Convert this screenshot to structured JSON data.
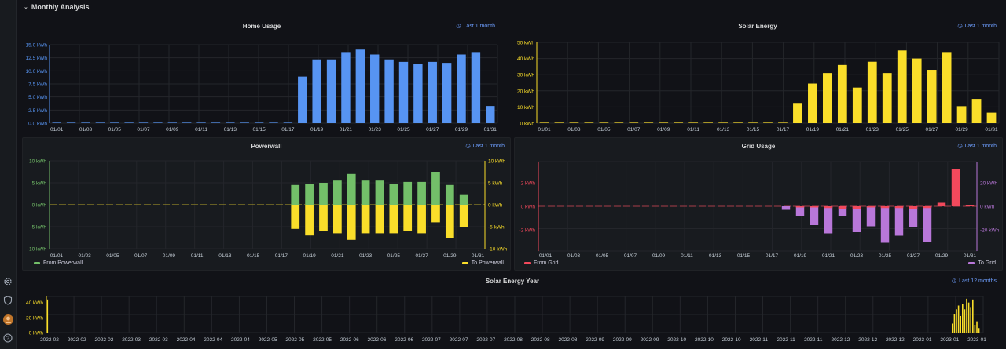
{
  "row_title": "Monthly Analysis",
  "sidebar_icons": [
    "gear-icon",
    "shield-icon",
    "user-avatar",
    "help-icon"
  ],
  "colors": {
    "blue": "#5794f2",
    "yellow": "#fade2a",
    "green": "#73bf69",
    "red": "#f2495c",
    "purple": "#b877d9",
    "axis_text": "#c7d0d9",
    "link": "#6e9fff"
  },
  "panels": {
    "home": {
      "title": "Home Usage",
      "time": "Last 1 month"
    },
    "solar": {
      "title": "Solar Energy",
      "time": "Last 1 month"
    },
    "powerwall": {
      "title": "Powerwall",
      "time": "Last 1 month",
      "legend_left": "From Powerwall",
      "legend_right": "To Powerwall"
    },
    "grid": {
      "title": "Grid Usage",
      "time": "Last 1 month",
      "legend_left": "From Grid",
      "legend_right": "To Grid"
    },
    "year": {
      "title": "Solar Energy Year",
      "time": "Last 12 months"
    }
  },
  "chart_data": [
    {
      "id": "home",
      "type": "bar",
      "title": "Home Usage",
      "days": 31,
      "x_ticks": [
        "01/01",
        "01/03",
        "01/05",
        "01/07",
        "01/09",
        "01/11",
        "01/13",
        "01/15",
        "01/17",
        "01/19",
        "01/21",
        "01/23",
        "01/25",
        "01/27",
        "01/29",
        "01/31"
      ],
      "y_ticks": [
        "15.0 kWh",
        "12.5 kWh",
        "10.0 kWh",
        "7.5 kWh",
        "5.0 kWh",
        "2.5 kWh",
        "0.0 kWh"
      ],
      "ylim": [
        0,
        16
      ],
      "values": [
        0,
        0,
        0,
        0,
        0,
        0,
        0,
        0,
        0,
        0,
        0,
        0,
        0,
        0,
        0,
        0,
        0,
        9.5,
        13,
        13,
        14.5,
        15,
        14,
        13,
        12.5,
        12,
        12.5,
        12.3,
        14,
        14.5,
        3.5
      ]
    },
    {
      "id": "solar",
      "type": "bar",
      "title": "Solar Energy",
      "days": 31,
      "x_ticks": [
        "01/01",
        "01/03",
        "01/05",
        "01/07",
        "01/09",
        "01/11",
        "01/13",
        "01/15",
        "01/17",
        "01/19",
        "01/21",
        "01/23",
        "01/25",
        "01/27",
        "01/29",
        "01/31"
      ],
      "y_ticks": [
        "50 kWh",
        "40 kWh",
        "30 kWh",
        "20 kWh",
        "10 kWh",
        "0 kWh"
      ],
      "ylim": [
        0,
        50
      ],
      "values": [
        0,
        0,
        0,
        0,
        0,
        0,
        0,
        0,
        0,
        0,
        0,
        0,
        0,
        0,
        0,
        0,
        0,
        12.5,
        24.5,
        31,
        36,
        22,
        38,
        31,
        45,
        40,
        33,
        44,
        10.5,
        15,
        6.5
      ]
    },
    {
      "id": "powerwall",
      "type": "bar",
      "title": "Powerwall",
      "days": 31,
      "x_ticks": [
        "01/01",
        "01/03",
        "01/05",
        "01/07",
        "01/09",
        "01/11",
        "01/13",
        "01/15",
        "01/17",
        "01/19",
        "01/21",
        "01/23",
        "01/25",
        "01/27",
        "01/29",
        "01/31"
      ],
      "y_ticks_left": [
        "10 kWh",
        "5 kWh",
        "0 kWh",
        "-5 kWh",
        "-10 kWh"
      ],
      "y_ticks_right": [
        "10 kWh",
        "5 kWh",
        "0 kWh",
        "-5 kWh",
        "-10 kWh"
      ],
      "ylim": [
        -10,
        10
      ],
      "series": [
        {
          "name": "From Powerwall",
          "values": [
            0,
            0,
            0,
            0,
            0,
            0,
            0,
            0,
            0,
            0,
            0,
            0,
            0,
            0,
            0,
            0,
            0,
            4.5,
            4.8,
            5,
            5.5,
            7,
            5.5,
            5.5,
            4.8,
            5.2,
            5.2,
            7.5,
            4.5,
            2.2,
            0
          ]
        },
        {
          "name": "To Powerwall",
          "values": [
            0,
            0,
            0,
            0,
            0,
            0,
            0,
            0,
            0,
            0,
            0,
            0,
            0,
            0,
            0,
            0,
            0,
            -5.5,
            -7,
            -6,
            -6.5,
            -8,
            -6.5,
            -6.5,
            -6.5,
            -6,
            -6.5,
            -4,
            -7.5,
            -5,
            0
          ]
        }
      ]
    },
    {
      "id": "grid",
      "type": "bar",
      "title": "Grid Usage",
      "days": 31,
      "x_ticks": [
        "01/01",
        "01/03",
        "01/05",
        "01/07",
        "01/09",
        "01/11",
        "01/13",
        "01/15",
        "01/17",
        "01/19",
        "01/21",
        "01/23",
        "01/25",
        "01/27",
        "01/29",
        "01/31"
      ],
      "y_ticks_left": [
        "2 kWh",
        "0 kWh",
        "-2 kWh"
      ],
      "y_ticks_right": [
        "20 kWh",
        "0 kWh",
        "-20 kWh"
      ],
      "ylim_left": [
        -3.8,
        3.8
      ],
      "ylim_right": [
        -38,
        38
      ],
      "series": [
        {
          "name": "From Grid",
          "values": [
            0,
            0,
            0,
            0,
            0,
            0,
            0,
            0,
            0,
            0,
            0,
            0,
            0,
            0,
            0,
            0,
            0,
            0,
            -0.05,
            -0.1,
            -0.15,
            -0.2,
            -0.2,
            -0.1,
            -0.15,
            -0.15,
            -0.2,
            -0.15,
            0.3,
            3.2,
            0.1
          ]
        },
        {
          "name": "To Grid",
          "values": [
            0,
            0,
            0,
            0,
            0,
            0,
            0,
            0,
            0,
            0,
            0,
            0,
            0,
            0,
            0,
            0,
            0,
            -3,
            -8,
            -16,
            -23,
            -8,
            -22,
            -17,
            -31,
            -25,
            -18,
            -30,
            0,
            0,
            0
          ]
        }
      ]
    },
    {
      "id": "year",
      "type": "bar",
      "title": "Solar Energy Year",
      "x_ticks": [
        "2022-02",
        "2022-02",
        "2022-02",
        "2022-03",
        "2022-03",
        "2022-04",
        "2022-04",
        "2022-04",
        "2022-05",
        "2022-05",
        "2022-05",
        "2022-06",
        "2022-06",
        "2022-06",
        "2022-07",
        "2022-07",
        "2022-07",
        "2022-08",
        "2022-08",
        "2022-08",
        "2022-09",
        "2022-09",
        "2022-09",
        "2022-10",
        "2022-10",
        "2022-10",
        "2022-11",
        "2022-11",
        "2022-11",
        "2022-12",
        "2022-12",
        "2022-12",
        "2023-01",
        "2023-01",
        "2023-01"
      ],
      "y_ticks": [
        "40 kWh",
        "20 kWh",
        "0 kWh"
      ],
      "ylim": [
        0,
        48
      ],
      "values": [
        12,
        24,
        31,
        36,
        22,
        38,
        31,
        45,
        40,
        33,
        44,
        10,
        15,
        6
      ]
    }
  ]
}
